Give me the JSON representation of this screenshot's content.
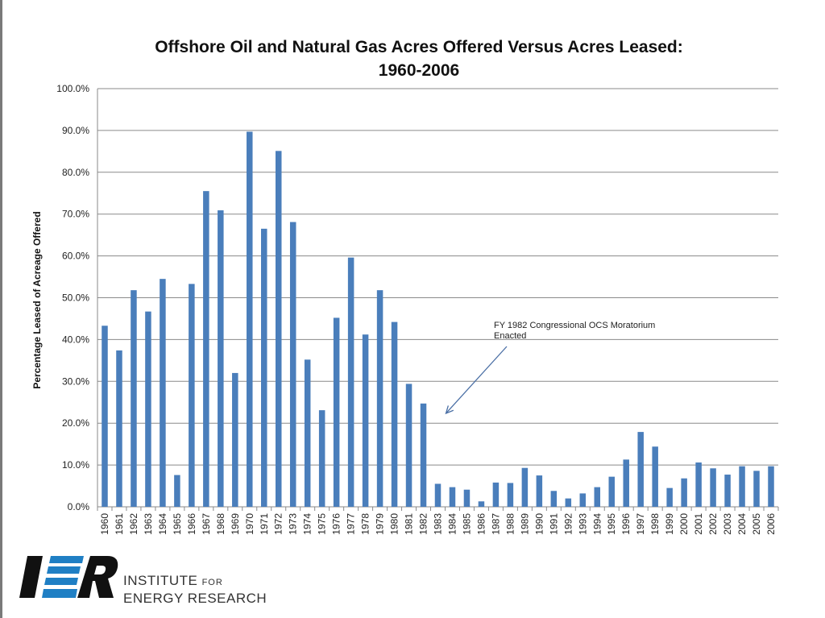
{
  "chart_data": {
    "type": "bar",
    "title_lines": [
      "Offshore Oil and Natural Gas Acres Offered Versus Acres Leased:",
      "1960-2006"
    ],
    "ylabel": "Percentage Leased of Acreage Offered",
    "xlabel": "",
    "ylim": [
      0,
      100
    ],
    "ytick_labels": [
      "0.0%",
      "10.0%",
      "20.0%",
      "30.0%",
      "40.0%",
      "50.0%",
      "60.0%",
      "70.0%",
      "80.0%",
      "90.0%",
      "100.0%"
    ],
    "ytick_values": [
      0,
      10,
      20,
      30,
      40,
      50,
      60,
      70,
      80,
      90,
      100
    ],
    "grid": true,
    "bar_color": "#4a7ebb",
    "categories": [
      "1960",
      "1961",
      "1962",
      "1963",
      "1964",
      "1965",
      "1966",
      "1967",
      "1968",
      "1969",
      "1970",
      "1971",
      "1972",
      "1973",
      "1974",
      "1975",
      "1976",
      "1977",
      "1978",
      "1979",
      "1980",
      "1981",
      "1982",
      "1983",
      "1984",
      "1985",
      "1986",
      "1987",
      "1988",
      "1989",
      "1990",
      "1991",
      "1992",
      "1993",
      "1994",
      "1995",
      "1996",
      "1997",
      "1998",
      "1999",
      "2000",
      "2001",
      "2002",
      "2003",
      "2004",
      "2005",
      "2006"
    ],
    "values": [
      43.3,
      37.4,
      51.8,
      46.7,
      54.5,
      7.6,
      53.3,
      75.5,
      70.9,
      32.0,
      89.7,
      66.5,
      85.1,
      68.1,
      35.2,
      23.1,
      45.2,
      59.6,
      41.2,
      51.8,
      44.2,
      29.4,
      24.7,
      5.5,
      4.7,
      4.1,
      1.3,
      5.8,
      5.7,
      9.3,
      7.5,
      3.8,
      2.0,
      3.2,
      4.7,
      7.2,
      11.3,
      17.9,
      14.4,
      4.5,
      6.8,
      10.6,
      9.2,
      7.7,
      9.7,
      8.6,
      9.7
    ],
    "annotation": {
      "lines": [
        "FY 1982 Congressional OCS Moratorium",
        "Enacted"
      ],
      "points_to": "1982"
    }
  },
  "logo": {
    "mark": "IER",
    "line1_main": "INSTITUTE",
    "line1_small": "FOR",
    "line2": "ENERGY RESEARCH",
    "color_blue": "#1f7fc4",
    "color_dark": "#111111"
  }
}
